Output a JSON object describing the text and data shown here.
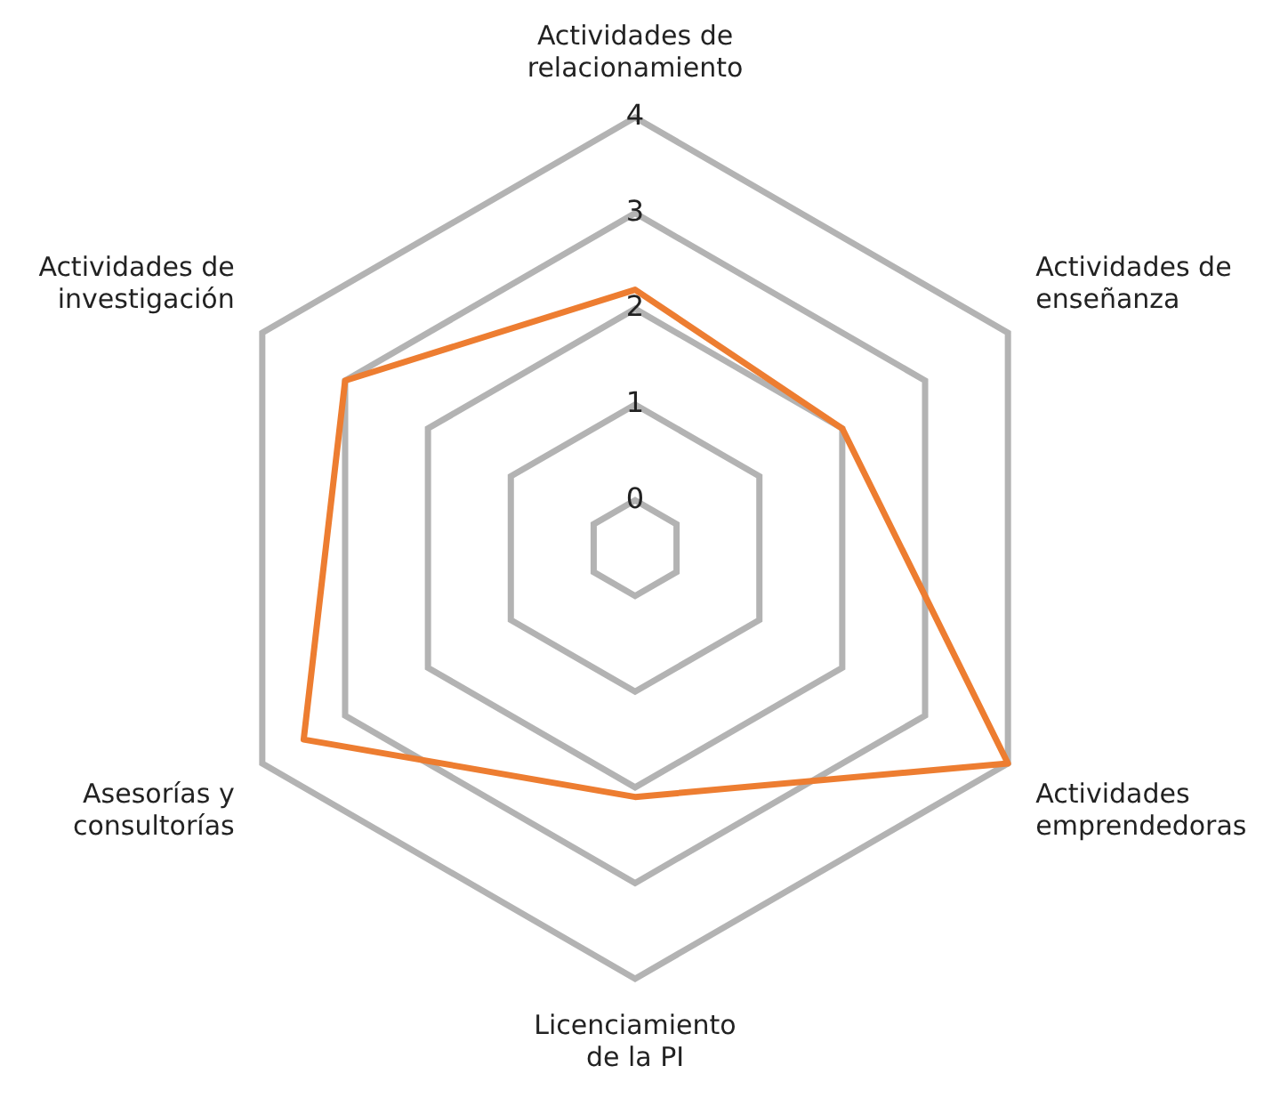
{
  "chart_data": {
    "type": "radar",
    "categories": [
      "Actividades de relacionamiento",
      "Actividades de enseñanza",
      "Actividades emprendedoras",
      "Licenciamiento de la PI",
      "Asesorías y consultorías",
      "Actividades de investigación"
    ],
    "series": [
      {
        "color": "#ed7d31",
        "values": [
          2.2,
          2,
          4,
          2.1,
          3.5,
          3
        ]
      }
    ],
    "ylim": [
      -0.5,
      4
    ],
    "yticks": [
      0,
      1,
      2,
      3,
      4
    ],
    "grid": true,
    "legend": false,
    "marker": "none"
  }
}
